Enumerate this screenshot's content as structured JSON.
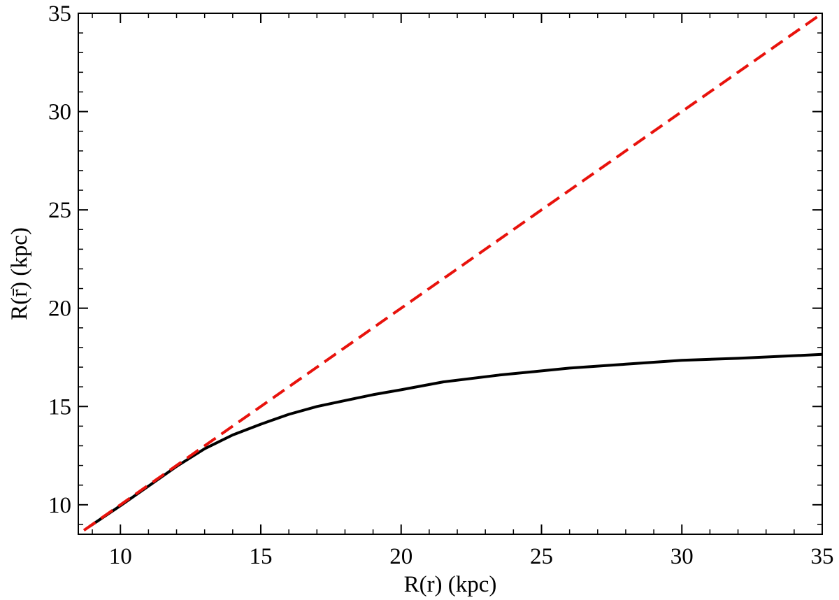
{
  "chart_data": {
    "type": "line",
    "xlabel": "R(r) (kpc)",
    "ylabel": "R(r̄) (kpc)",
    "xlim": [
      8.5,
      35
    ],
    "ylim": [
      8.5,
      35
    ],
    "x_ticks": [
      10,
      15,
      20,
      25,
      30,
      35
    ],
    "y_ticks": [
      10,
      15,
      20,
      25,
      30,
      35
    ],
    "x_tick_labels": [
      "10",
      "15",
      "20",
      "25",
      "30",
      "35"
    ],
    "y_tick_labels": [
      "10",
      "15",
      "20",
      "25",
      "30",
      "35"
    ],
    "x_minor_step": 1,
    "y_minor_step": 1,
    "grid": false,
    "legend": "none",
    "series": [
      {
        "color": "#000000",
        "style": "solid",
        "x": [
          8.9,
          10,
          11,
          12,
          13,
          14,
          15,
          16,
          17,
          18,
          19,
          20,
          21.5,
          23.5,
          26,
          28,
          30,
          32,
          35
        ],
        "y": [
          8.9,
          9.95,
          10.95,
          11.95,
          12.85,
          13.55,
          14.1,
          14.6,
          15.0,
          15.3,
          15.6,
          15.85,
          16.25,
          16.6,
          16.95,
          17.15,
          17.35,
          17.45,
          17.65
        ]
      },
      {
        "color": "#e8120c",
        "style": "dashed",
        "x": [
          8.7,
          35
        ],
        "y": [
          8.7,
          35
        ]
      }
    ]
  }
}
